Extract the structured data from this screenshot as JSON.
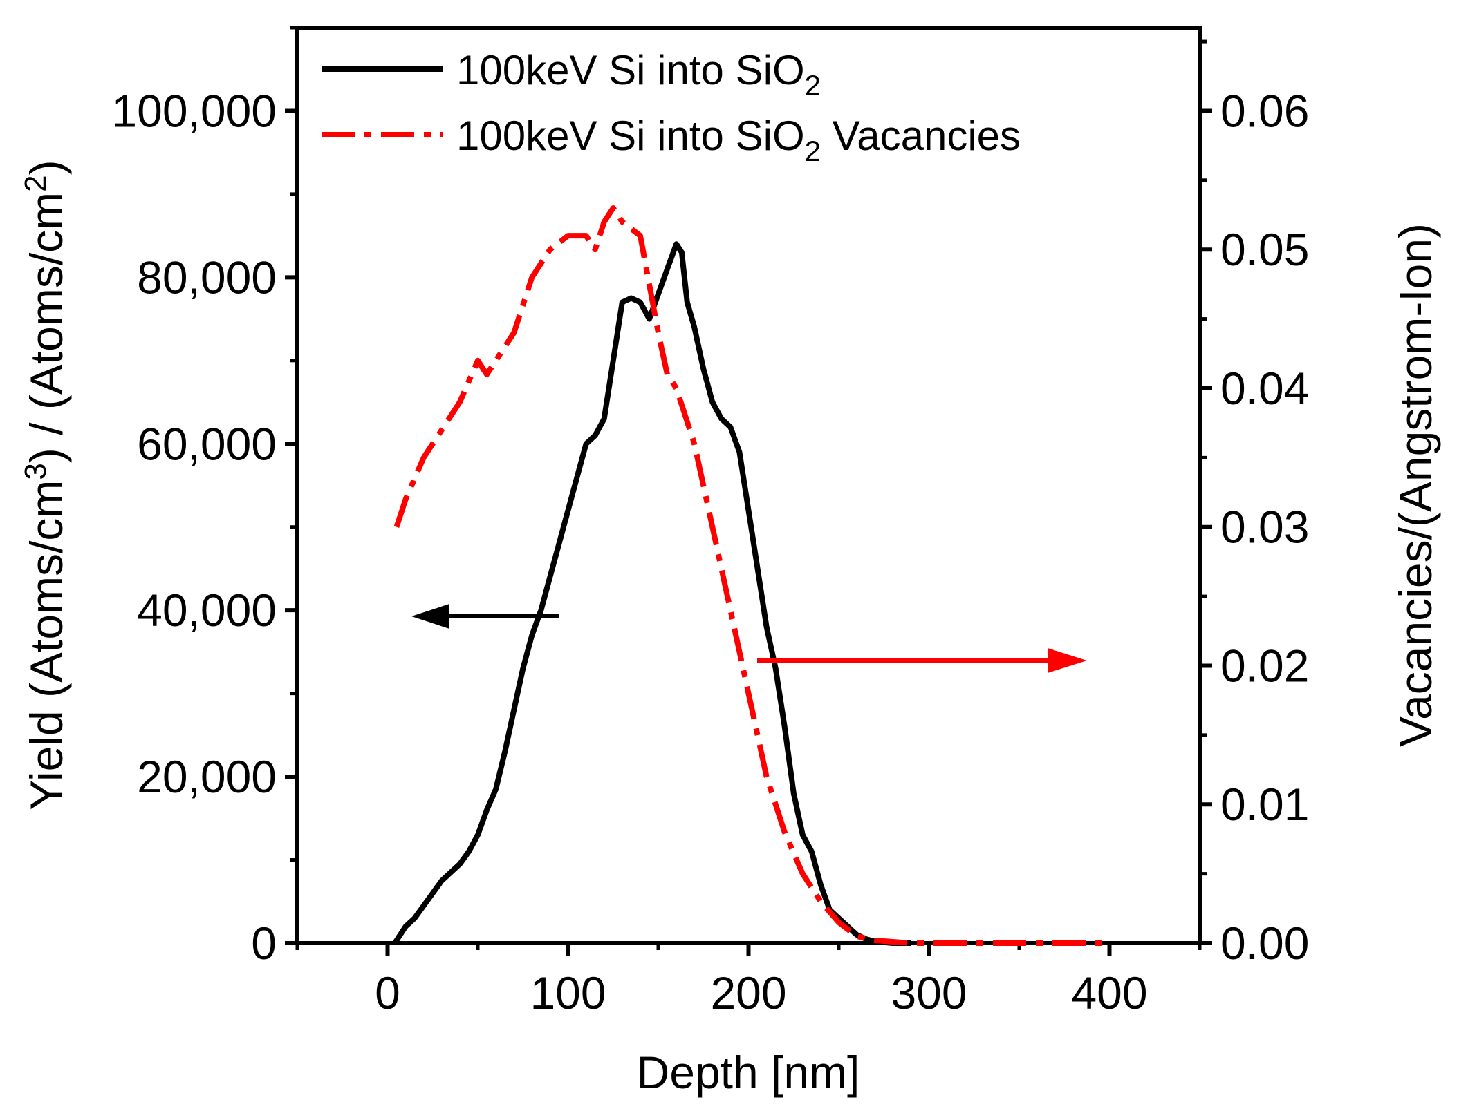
{
  "chart_data": {
    "type": "line",
    "xlabel": "Depth [nm]",
    "ylabel_left": "Yield (Atoms/cm³) / (Atoms/cm²)",
    "ylabel_right": "Vacancies/(Angstrom-Ion)",
    "xlim": [
      -50,
      450
    ],
    "ylim_left": [
      0,
      110000
    ],
    "ylim_right": [
      0,
      0.066
    ],
    "x_ticks": [
      "0",
      "100",
      "200",
      "300",
      "400"
    ],
    "y_left_ticks": [
      "0",
      "20,000",
      "40,000",
      "60,000",
      "80,000",
      "100,000"
    ],
    "y_right_ticks": [
      "0.00",
      "0.01",
      "0.02",
      "0.03",
      "0.04",
      "0.05",
      "0.06"
    ],
    "grid": false,
    "legend": "top-left",
    "series": [
      {
        "name": "100keV Si into SiO₂",
        "axis": "left",
        "color": "#000000",
        "style": "solid",
        "x": [
          4,
          10,
          15,
          20,
          25,
          30,
          35,
          40,
          45,
          50,
          55,
          60,
          65,
          70,
          75,
          80,
          85,
          90,
          95,
          100,
          105,
          110,
          115,
          120,
          125,
          130,
          135,
          140,
          145,
          150,
          155,
          160,
          163,
          166,
          170,
          175,
          180,
          185,
          190,
          195,
          200,
          205,
          210,
          215,
          220,
          225,
          230,
          235,
          240,
          245,
          250,
          255,
          260,
          265,
          270,
          275,
          280,
          290
        ],
        "y": [
          0,
          2000,
          3000,
          4500,
          6000,
          7500,
          8500,
          9500,
          11000,
          13000,
          16000,
          18500,
          23000,
          28000,
          33000,
          37000,
          40000,
          44000,
          48000,
          52000,
          56000,
          60000,
          61000,
          63000,
          70000,
          77000,
          77500,
          77000,
          75000,
          78000,
          81000,
          84000,
          83000,
          77000,
          74000,
          69000,
          65000,
          63000,
          62000,
          59000,
          52000,
          45000,
          38000,
          33000,
          26000,
          18000,
          13000,
          11000,
          7000,
          4000,
          3000,
          2000,
          1000,
          500,
          200,
          100,
          0,
          0
        ]
      },
      {
        "name": "100keV Si into SiO₂ Vacancies",
        "axis": "right",
        "color": "#ff0000",
        "style": "dash-dot",
        "x": [
          5,
          10,
          20,
          30,
          40,
          50,
          55,
          60,
          70,
          75,
          80,
          90,
          100,
          110,
          115,
          120,
          125,
          130,
          140,
          150,
          155,
          160,
          170,
          180,
          190,
          200,
          210,
          220,
          230,
          240,
          250,
          260,
          270,
          280,
          290,
          300,
          320,
          350,
          380,
          400
        ],
        "y": [
          0.03,
          0.032,
          0.035,
          0.037,
          0.039,
          0.042,
          0.041,
          0.042,
          0.044,
          0.046,
          0.048,
          0.05,
          0.051,
          0.051,
          0.05,
          0.052,
          0.053,
          0.052,
          0.051,
          0.044,
          0.041,
          0.04,
          0.036,
          0.03,
          0.024,
          0.018,
          0.012,
          0.008,
          0.005,
          0.003,
          0.0015,
          0.0005,
          0.0002,
          0.0001,
          0,
          0,
          0,
          0,
          0,
          0
        ]
      }
    ],
    "annotations": [
      {
        "type": "arrow",
        "color": "#000000",
        "points_to": "left axis"
      },
      {
        "type": "arrow",
        "color": "#ff0000",
        "points_to": "right axis"
      }
    ]
  }
}
